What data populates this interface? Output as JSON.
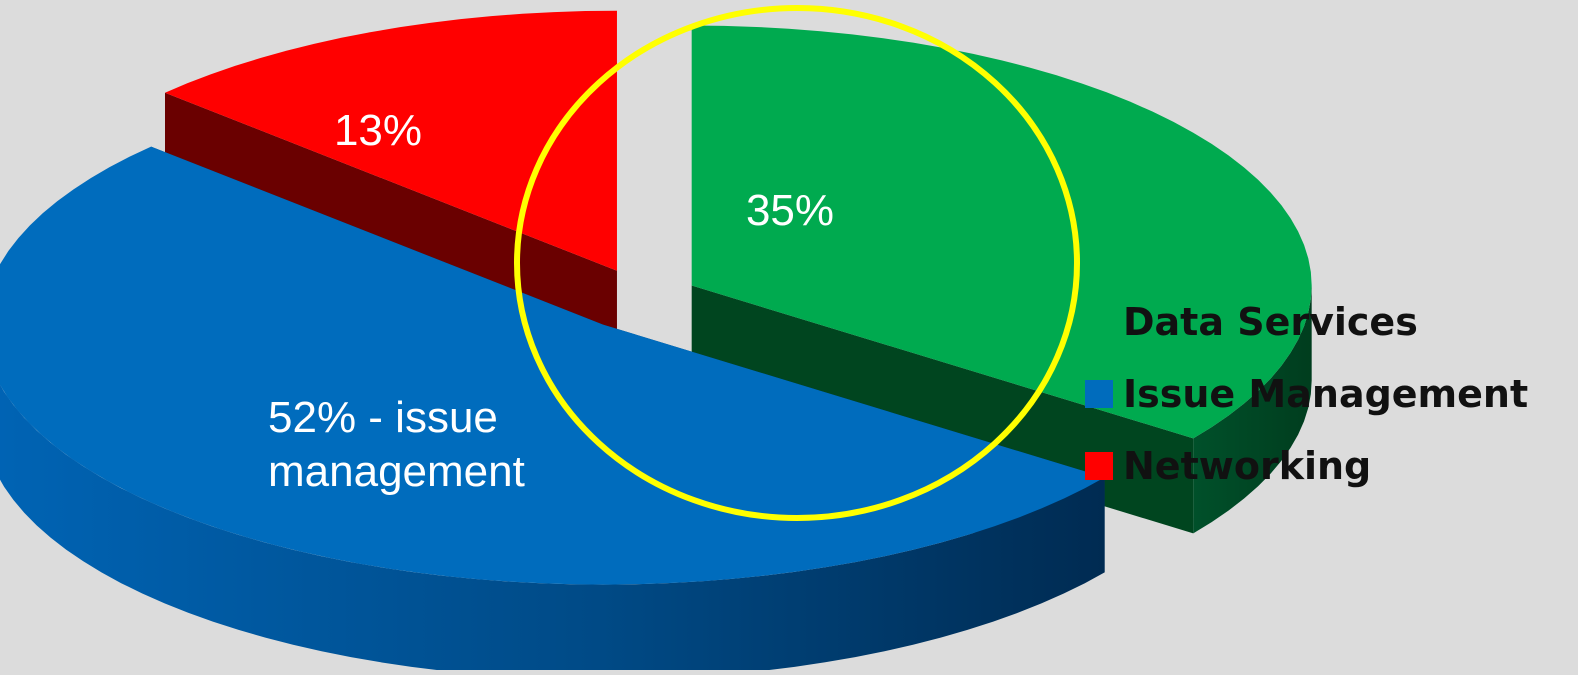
{
  "chart_data": {
    "type": "pie",
    "style": "3d-exploded",
    "categories": [
      "Data Services",
      "Issue Management",
      "Networking"
    ],
    "values": [
      35,
      52,
      13
    ],
    "unit": "%",
    "data_labels": [
      "35%",
      "52% - issue\nmanagement",
      "13%"
    ],
    "colors": {
      "Data Services": "#00aa4f",
      "Issue Management": "#006cbd",
      "Networking": "#ff0000"
    },
    "highlight": {
      "category": "Data Services",
      "shape": "circle",
      "color": "#ffff00"
    },
    "legend": {
      "placement": "right",
      "entries": [
        "Data Services",
        "Issue Management",
        "Networking"
      ]
    },
    "background": "#dcdcdc",
    "title": ""
  }
}
